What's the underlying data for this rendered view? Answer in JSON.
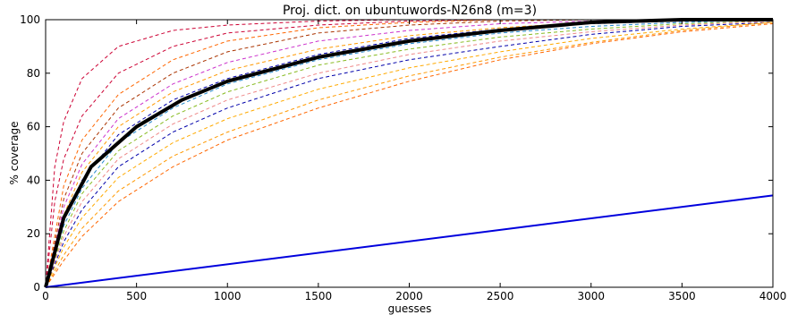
{
  "chart_data": {
    "type": "line",
    "title": "Proj. dict. on ubuntuwords-N26n8 (m=3)",
    "xlabel": "guesses",
    "ylabel": "% coverage",
    "xlim": [
      0,
      4000
    ],
    "ylim": [
      0,
      100
    ],
    "x_ticks": [
      0,
      500,
      1000,
      1500,
      2000,
      2500,
      3000,
      3500,
      4000
    ],
    "y_ticks": [
      0,
      20,
      40,
      60,
      80,
      100
    ],
    "grid": false,
    "legend": "none",
    "colors": {
      "average": "#000000",
      "baseline": "#0000dd",
      "dashed_palette": [
        "#cc0033",
        "#ff6600",
        "#ff9900",
        "#0000aa",
        "#2288cc",
        "#88bb22",
        "#cc33cc",
        "#ee8888",
        "#aa3300",
        "#ffaa00"
      ]
    },
    "series": [
      {
        "style": "solid-thick",
        "color": "#000000",
        "x": [
          0,
          100,
          250,
          500,
          750,
          1000,
          1500,
          2000,
          2500,
          3000,
          3500,
          4000
        ],
        "y": [
          0,
          26,
          45,
          60,
          70,
          77,
          86,
          92,
          96,
          99,
          100,
          100
        ]
      },
      {
        "style": "solid",
        "color": "#0000dd",
        "x": [
          0,
          4000
        ],
        "y": [
          0,
          34.3
        ]
      },
      {
        "style": "dashed",
        "color": "#cc0033",
        "x": [
          0,
          50,
          100,
          200,
          400,
          700,
          1000,
          1500,
          2000,
          2500,
          3000
        ],
        "y": [
          0,
          45,
          62,
          78,
          90,
          96,
          98,
          99.5,
          100,
          100,
          100
        ]
      },
      {
        "style": "dashed",
        "color": "#cc0033",
        "x": [
          0,
          50,
          100,
          200,
          400,
          700,
          1000,
          1500,
          2000,
          2500,
          3000,
          3500
        ],
        "y": [
          0,
          32,
          48,
          64,
          80,
          90,
          95,
          98,
          99.5,
          100,
          100,
          100
        ]
      },
      {
        "style": "dashed",
        "color": "#ff6600",
        "x": [
          0,
          100,
          200,
          400,
          700,
          1000,
          1500,
          2000,
          2500,
          3000,
          3500
        ],
        "y": [
          0,
          38,
          55,
          72,
          85,
          92,
          97,
          99,
          100,
          100,
          100
        ]
      },
      {
        "style": "dashed",
        "color": "#aa3300",
        "x": [
          0,
          100,
          200,
          400,
          700,
          1000,
          1500,
          2000,
          2500,
          3000,
          3500
        ],
        "y": [
          0,
          33,
          50,
          67,
          80,
          88,
          95,
          98,
          99.5,
          100,
          100
        ]
      },
      {
        "style": "dashed",
        "color": "#cc33cc",
        "x": [
          0,
          100,
          200,
          400,
          700,
          1000,
          1500,
          2000,
          2500,
          3000,
          3500,
          4000
        ],
        "y": [
          0,
          30,
          46,
          63,
          76,
          84,
          92,
          96,
          98.5,
          99.5,
          100,
          100
        ]
      },
      {
        "style": "dashed",
        "color": "#ff9900",
        "x": [
          0,
          100,
          200,
          400,
          700,
          1000,
          1500,
          2000,
          2500,
          3000,
          3500,
          4000
        ],
        "y": [
          0,
          27,
          43,
          60,
          73,
          81,
          89,
          94,
          97,
          99,
          100,
          100
        ]
      },
      {
        "style": "dashed",
        "color": "#0000aa",
        "x": [
          0,
          100,
          200,
          400,
          700,
          1000,
          1500,
          2000,
          2500,
          3000,
          3500,
          4000
        ],
        "y": [
          0,
          25,
          40,
          57,
          70,
          78,
          87,
          93,
          96.5,
          98.5,
          99.5,
          100
        ]
      },
      {
        "style": "dashed",
        "color": "#2288cc",
        "x": [
          0,
          100,
          200,
          400,
          700,
          1000,
          1500,
          2000,
          2500,
          3000,
          3500,
          4000
        ],
        "y": [
          0,
          23,
          37,
          54,
          67,
          76,
          85,
          91,
          95,
          97.5,
          99,
          100
        ]
      },
      {
        "style": "dashed",
        "color": "#88bb22",
        "x": [
          0,
          100,
          200,
          400,
          700,
          1000,
          1500,
          2000,
          2500,
          3000,
          3500,
          4000
        ],
        "y": [
          0,
          21,
          35,
          51,
          64,
          73,
          83,
          89,
          93.5,
          96.5,
          98.5,
          99.5
        ]
      },
      {
        "style": "dashed",
        "color": "#ee8888",
        "x": [
          0,
          100,
          200,
          400,
          700,
          1000,
          1500,
          2000,
          2500,
          3000,
          3500,
          4000
        ],
        "y": [
          0,
          19,
          32,
          48,
          61,
          70,
          80,
          87,
          92,
          95.5,
          98,
          99.5
        ]
      },
      {
        "style": "dashed",
        "color": "#0000aa",
        "x": [
          0,
          100,
          200,
          400,
          700,
          1000,
          1500,
          2000,
          2500,
          3000,
          3500,
          4000
        ],
        "y": [
          0,
          17,
          29,
          45,
          58,
          67,
          78,
          85,
          90,
          94.5,
          97.5,
          99
        ]
      },
      {
        "style": "dashed",
        "color": "#ffaa00",
        "x": [
          0,
          100,
          200,
          400,
          700,
          1000,
          1500,
          2000,
          2500,
          3000,
          3500,
          4000
        ],
        "y": [
          0,
          15,
          26,
          41,
          54,
          63,
          74,
          82,
          88,
          93,
          96.5,
          99
        ]
      },
      {
        "style": "dashed",
        "color": "#ff9900",
        "x": [
          0,
          100,
          200,
          400,
          700,
          1000,
          1500,
          2000,
          2500,
          3000,
          3500,
          4000
        ],
        "y": [
          0,
          12,
          22,
          36,
          49,
          58,
          70,
          79,
          86,
          91.5,
          96,
          99
        ]
      },
      {
        "style": "dashed",
        "color": "#ff6600",
        "x": [
          0,
          100,
          200,
          400,
          700,
          1000,
          1500,
          2000,
          2500,
          3000,
          3500,
          4000
        ],
        "y": [
          0,
          10,
          19,
          32,
          45,
          55,
          67,
          77,
          85,
          91,
          95.5,
          98.5
        ]
      }
    ]
  }
}
